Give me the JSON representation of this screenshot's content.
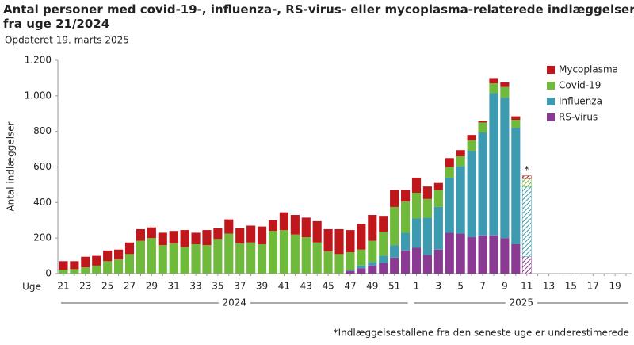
{
  "chart_data": {
    "type": "stacked_bar",
    "title": "Antal personer med covid-19-, influenza-, RS-virus- eller mycoplasma-relaterede indlæggelser",
    "title_line2": "fra uge 21/2024",
    "subtitle": "Opdateret 19. marts 2025",
    "y_label": "Antal indlæggelser",
    "x_label": "Uge",
    "annotation": "*",
    "footnote": "*Indlæggelsestallene fra den seneste uge er underestimerede",
    "categories": [
      "21",
      null,
      "23",
      null,
      "25",
      null,
      "27",
      null,
      "29",
      null,
      "31",
      null,
      "33",
      null,
      "35",
      null,
      "37",
      null,
      "39",
      null,
      "41",
      null,
      "43",
      null,
      "45",
      null,
      "47",
      null,
      "49",
      null,
      "51",
      null,
      "1",
      null,
      "3",
      null,
      "5",
      null,
      "7",
      null,
      "9",
      null,
      "11",
      null,
      "13",
      null,
      "15",
      null,
      "17",
      null,
      "19",
      null
    ],
    "x_groups": [
      {
        "label": "2024",
        "start": 0,
        "end": 31
      },
      {
        "label": "2025",
        "start": 32,
        "end": 51
      }
    ],
    "series": [
      {
        "name": "RS-virus",
        "color": "#8b3a93",
        "values": [
          0,
          0,
          0,
          0,
          0,
          0,
          0,
          0,
          0,
          0,
          0,
          0,
          0,
          0,
          0,
          0,
          0,
          0,
          0,
          0,
          0,
          0,
          0,
          0,
          0,
          0,
          15,
          30,
          45,
          60,
          90,
          130,
          145,
          105,
          135,
          230,
          225,
          205,
          215,
          215,
          200,
          165,
          95,
          null,
          null,
          null,
          null,
          null,
          null,
          null,
          null,
          null
        ]
      },
      {
        "name": "Influenza",
        "color": "#3c9bb1",
        "values": [
          0,
          0,
          0,
          0,
          0,
          0,
          0,
          0,
          0,
          0,
          0,
          0,
          0,
          0,
          0,
          0,
          0,
          0,
          0,
          0,
          0,
          0,
          0,
          0,
          0,
          0,
          5,
          15,
          20,
          40,
          70,
          100,
          165,
          210,
          240,
          310,
          380,
          485,
          580,
          800,
          790,
          655,
          395,
          null,
          null,
          null,
          null,
          null,
          null,
          null,
          null,
          null
        ]
      },
      {
        "name": "Covid-19",
        "color": "#6fba3a",
        "values": [
          22,
          25,
          35,
          45,
          70,
          80,
          110,
          185,
          200,
          160,
          170,
          150,
          165,
          160,
          195,
          225,
          170,
          175,
          165,
          240,
          245,
          220,
          205,
          175,
          125,
          110,
          100,
          90,
          120,
          135,
          215,
          175,
          145,
          105,
          95,
          60,
          55,
          60,
          55,
          55,
          60,
          45,
          45,
          null,
          null,
          null,
          null,
          null,
          null,
          null,
          null,
          null
        ]
      },
      {
        "name": "Mycoplasma",
        "color": "#c0171d",
        "values": [
          48,
          45,
          60,
          55,
          60,
          55,
          65,
          65,
          60,
          70,
          70,
          95,
          65,
          85,
          60,
          80,
          85,
          95,
          100,
          60,
          100,
          110,
          110,
          120,
          125,
          140,
          125,
          145,
          145,
          90,
          95,
          65,
          85,
          70,
          40,
          50,
          35,
          30,
          10,
          30,
          25,
          20,
          15,
          null,
          null,
          null,
          null,
          null,
          null,
          null,
          null,
          null
        ]
      }
    ],
    "ylim": [
      0,
      1200
    ],
    "yticks": [
      0,
      200,
      400,
      600,
      800,
      {
        "value": 1000,
        "label": "1.000"
      },
      {
        "value": 1200,
        "label": "1.200"
      }
    ],
    "legend": "top-right"
  }
}
